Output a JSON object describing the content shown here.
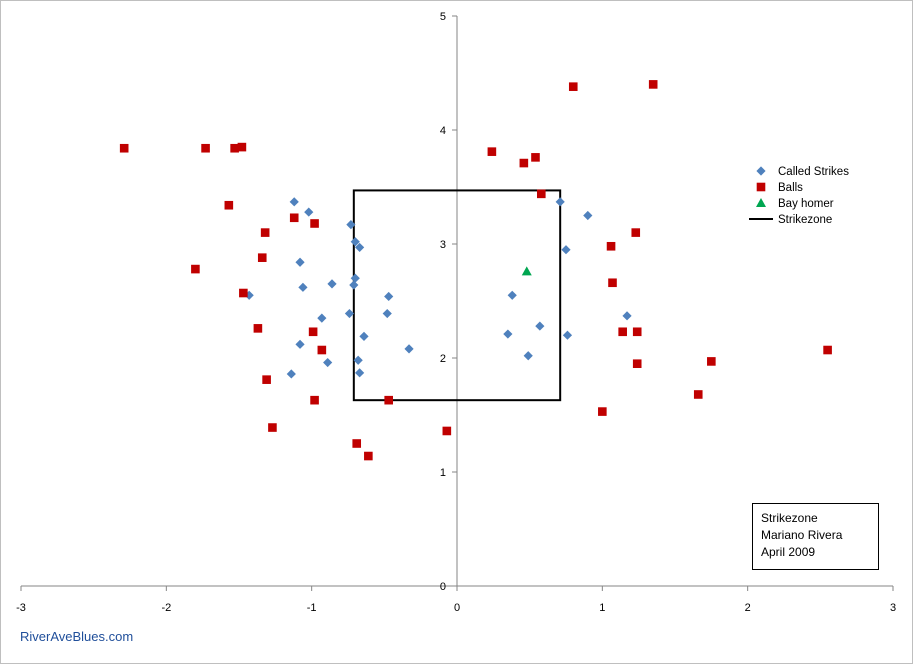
{
  "chart_data": {
    "type": "scatter",
    "title": "",
    "xlabel": "",
    "ylabel": "",
    "xlim": [
      -3,
      3
    ],
    "ylim": [
      0,
      5
    ],
    "x_ticks": [
      "-3",
      "-2",
      "-1",
      "0",
      "1",
      "2",
      "3"
    ],
    "y_ticks": [
      "0",
      "1",
      "2",
      "3",
      "4",
      "5"
    ],
    "grid": false,
    "legend_position": "right",
    "series": [
      {
        "name": "Called Strikes",
        "marker": "diamond",
        "color": "#4f81bd",
        "points": [
          [
            -1.12,
            3.37
          ],
          [
            -1.02,
            3.28
          ],
          [
            -0.73,
            3.17
          ],
          [
            -0.7,
            3.02
          ],
          [
            -0.67,
            2.97
          ],
          [
            -1.08,
            2.84
          ],
          [
            -0.7,
            2.7
          ],
          [
            -0.71,
            2.64
          ],
          [
            -0.86,
            2.65
          ],
          [
            -1.06,
            2.62
          ],
          [
            -1.43,
            2.55
          ],
          [
            -0.47,
            2.54
          ],
          [
            -0.74,
            2.39
          ],
          [
            -0.48,
            2.39
          ],
          [
            -0.93,
            2.35
          ],
          [
            -0.64,
            2.19
          ],
          [
            -1.08,
            2.12
          ],
          [
            -0.33,
            2.08
          ],
          [
            -0.68,
            1.98
          ],
          [
            -0.89,
            1.96
          ],
          [
            -0.67,
            1.87
          ],
          [
            -1.14,
            1.86
          ],
          [
            0.71,
            3.37
          ],
          [
            0.9,
            3.25
          ],
          [
            0.75,
            2.95
          ],
          [
            0.38,
            2.55
          ],
          [
            1.17,
            2.37
          ],
          [
            0.57,
            2.28
          ],
          [
            0.35,
            2.21
          ],
          [
            0.76,
            2.2
          ],
          [
            0.49,
            2.02
          ]
        ]
      },
      {
        "name": "Balls",
        "marker": "square",
        "color": "#c00000",
        "points": [
          [
            -2.29,
            3.84
          ],
          [
            -1.73,
            3.84
          ],
          [
            -1.53,
            3.84
          ],
          [
            -1.48,
            3.85
          ],
          [
            -1.57,
            3.34
          ],
          [
            -1.12,
            3.23
          ],
          [
            -0.98,
            3.18
          ],
          [
            -1.32,
            3.1
          ],
          [
            -1.34,
            2.88
          ],
          [
            -1.8,
            2.78
          ],
          [
            -1.47,
            2.57
          ],
          [
            -1.37,
            2.26
          ],
          [
            -0.99,
            2.23
          ],
          [
            -0.93,
            2.07
          ],
          [
            -1.31,
            1.81
          ],
          [
            -0.98,
            1.63
          ],
          [
            -1.27,
            1.39
          ],
          [
            -0.69,
            1.25
          ],
          [
            -0.61,
            1.14
          ],
          [
            -0.47,
            1.63
          ],
          [
            -0.07,
            1.36
          ],
          [
            0.24,
            3.81
          ],
          [
            0.46,
            3.71
          ],
          [
            0.54,
            3.76
          ],
          [
            0.58,
            3.44
          ],
          [
            0.8,
            4.38
          ],
          [
            1.35,
            4.4
          ],
          [
            1.06,
            2.98
          ],
          [
            1.23,
            3.1
          ],
          [
            1.07,
            2.66
          ],
          [
            1.14,
            2.23
          ],
          [
            1.24,
            2.23
          ],
          [
            1.24,
            1.95
          ],
          [
            1.75,
            1.97
          ],
          [
            1.66,
            1.68
          ],
          [
            1.0,
            1.53
          ],
          [
            2.55,
            2.07
          ]
        ]
      },
      {
        "name": "Bay homer",
        "marker": "triangle",
        "color": "#00a651",
        "points": [
          [
            0.48,
            2.76
          ]
        ]
      }
    ],
    "strikezone": {
      "name": "Strikezone",
      "color": "#000000",
      "x_min": -0.71,
      "x_max": 0.71,
      "z_min": 1.63,
      "z_max": 3.47
    }
  },
  "note": {
    "line1": "Strikezone",
    "line2": "Mariano Rivera",
    "line3": "April 2009"
  },
  "footer": {
    "source": "RiverAveBlues.com"
  }
}
